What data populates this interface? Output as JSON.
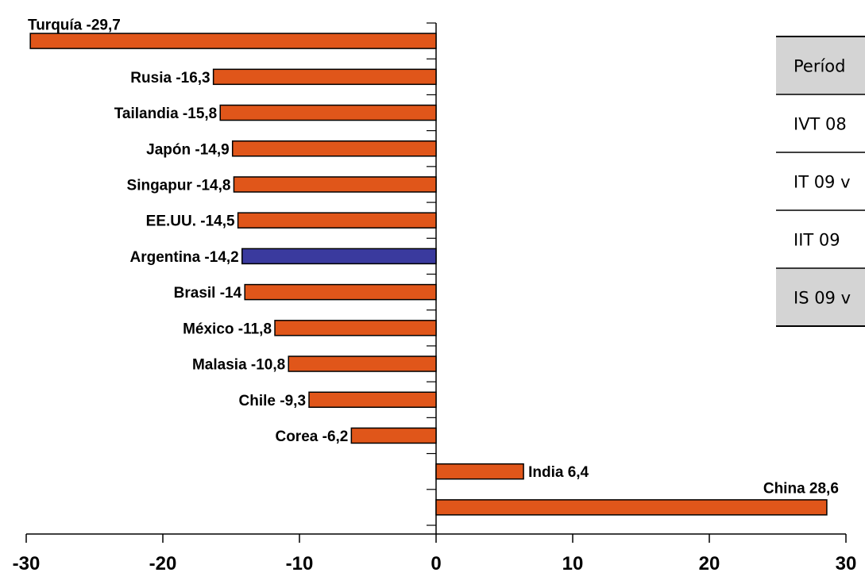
{
  "chart_data": {
    "type": "bar",
    "orientation": "horizontal",
    "categories": [
      "Turquía",
      "Rusia",
      "Tailandia",
      "Japón",
      "Singapur",
      "EE.UU.",
      "Argentina",
      "Brasil",
      "México",
      "Malasia",
      "Chile",
      "Corea",
      "India",
      "China"
    ],
    "values": [
      -29.7,
      -16.3,
      -15.8,
      -14.9,
      -14.8,
      -14.5,
      -14.2,
      -14,
      -11.8,
      -10.8,
      -9.3,
      -6.2,
      6.4,
      28.6
    ],
    "labels": [
      "Turquía -29,7",
      "Rusia -16,3",
      "Tailandia -15,8",
      "Japón -14,9",
      "Singapur -14,8",
      "EE.UU. -14,5",
      "Argentina -14,2",
      "Brasil -14",
      "México -11,8",
      "Malasia -10,8",
      "Chile -9,3",
      "Corea -6,2",
      "India 6,4",
      "China 28,6"
    ],
    "highlight": "Argentina",
    "colors": {
      "bar": "#E0561A",
      "highlight": "#3A3A9E",
      "bar_stroke": "#000000"
    },
    "xlim": [
      -30,
      30
    ],
    "xticks": [
      -30,
      -20,
      -10,
      0,
      10,
      20,
      30
    ],
    "xtick_labels": [
      "-30",
      "-20",
      "-10",
      "0",
      "10",
      "20",
      "30"
    ],
    "grid": false,
    "title": "",
    "xlabel": "",
    "ylabel": ""
  },
  "table": {
    "rows": [
      "Períod",
      "IVT 08",
      "IT 09 v",
      "IIT 09",
      "IS 09 v"
    ],
    "shaded": [
      true,
      false,
      false,
      false,
      true
    ],
    "colors": {
      "shade": "#D4D4D4"
    }
  }
}
